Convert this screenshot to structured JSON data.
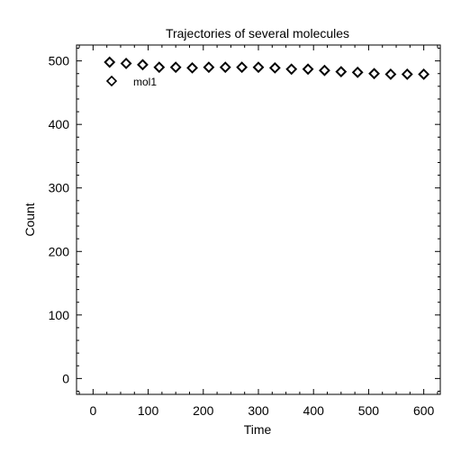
{
  "chart_data": {
    "type": "scatter",
    "title": "Trajectories of several molecules",
    "xlabel": "Time",
    "ylabel": "Count",
    "xlim": [
      -30,
      630
    ],
    "ylim": [
      -25,
      525
    ],
    "xticks": [
      0,
      100,
      200,
      300,
      400,
      500,
      600
    ],
    "yticks": [
      0,
      100,
      200,
      300,
      400,
      500
    ],
    "grid": false,
    "legend": "top-left",
    "series": [
      {
        "name": "mol1",
        "marker": "diamond",
        "color": "#000000",
        "x": [
          30,
          60,
          90,
          120,
          150,
          180,
          210,
          240,
          270,
          300,
          330,
          360,
          390,
          420,
          450,
          480,
          510,
          540,
          570,
          600
        ],
        "y": [
          498,
          496,
          494,
          490,
          490,
          489,
          490,
          490,
          490,
          490,
          489,
          487,
          487,
          485,
          483,
          482,
          480,
          479,
          479,
          479
        ]
      }
    ]
  }
}
